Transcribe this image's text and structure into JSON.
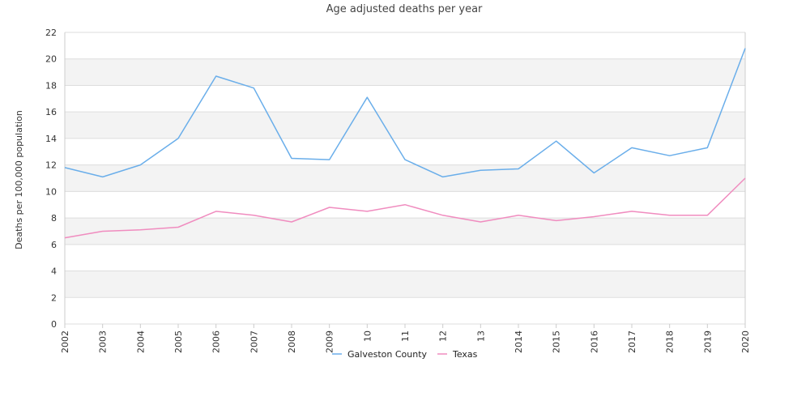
{
  "chart_data": {
    "type": "line",
    "title": "Age adjusted deaths per year",
    "xlabel": "",
    "ylabel": "Deaths per 100,000 population",
    "x": [
      "2002",
      "2003",
      "2004",
      "2005",
      "2006",
      "2007",
      "2008",
      "2009",
      "2010",
      "2011",
      "2012",
      "2013",
      "2014",
      "2015",
      "2016",
      "2017",
      "2018",
      "2019",
      "2020"
    ],
    "x_tick_labels": [
      "2002",
      "2003",
      "2004",
      "2005",
      "2006",
      "2007",
      "2008",
      "2009",
      "10",
      "11",
      "12",
      "13",
      "2014",
      "2015",
      "2016",
      "2017",
      "2018",
      "2019",
      "2020"
    ],
    "ylim": [
      0,
      22
    ],
    "yticks": [
      0,
      2,
      4,
      6,
      8,
      10,
      12,
      14,
      16,
      18,
      20,
      22
    ],
    "grid": "horizontal alternating bands",
    "legend_position": "bottom",
    "series": [
      {
        "name": "Galveston County",
        "color": "#6aaeea",
        "values": [
          11.8,
          11.1,
          12.0,
          14.0,
          18.7,
          17.8,
          12.5,
          12.4,
          17.1,
          12.4,
          11.1,
          11.6,
          11.7,
          13.8,
          11.4,
          13.3,
          12.7,
          13.3,
          20.8
        ]
      },
      {
        "name": "Texas",
        "color": "#f08cbf",
        "values": [
          6.5,
          7.0,
          7.1,
          7.3,
          8.5,
          8.2,
          7.7,
          8.8,
          8.5,
          9.0,
          8.2,
          7.7,
          8.2,
          7.8,
          8.1,
          8.5,
          8.2,
          8.2,
          11.0
        ]
      }
    ],
    "colors": {
      "band": "#f3f3f3",
      "gridline": "#dddddd",
      "axis": "#cccccc"
    }
  }
}
